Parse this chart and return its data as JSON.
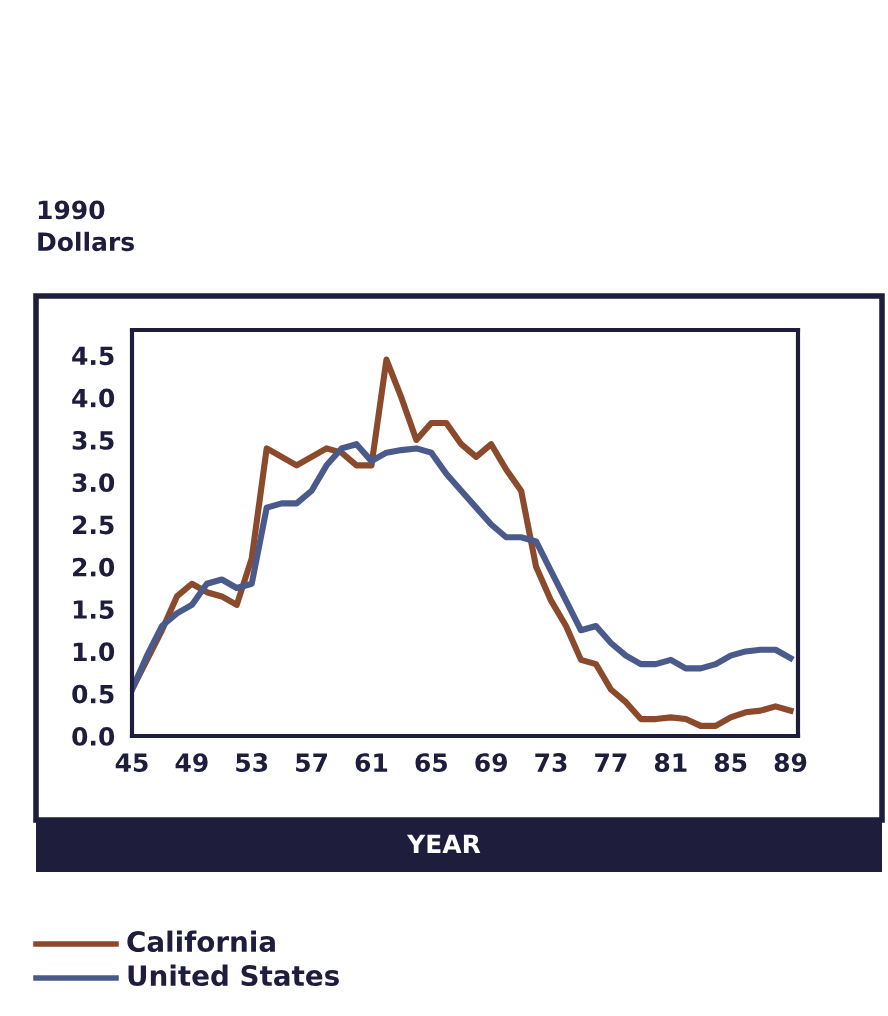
{
  "chart_data": {
    "type": "line",
    "ylabel": "1990\nDollars",
    "xlabel": "YEAR",
    "x": [
      45,
      46,
      47,
      48,
      49,
      50,
      51,
      52,
      53,
      54,
      55,
      56,
      57,
      58,
      59,
      60,
      61,
      62,
      63,
      64,
      65,
      66,
      67,
      68,
      69,
      70,
      71,
      72,
      73,
      74,
      75,
      76,
      77,
      78,
      79,
      80,
      81,
      82,
      83,
      84,
      85,
      86,
      87,
      88,
      89
    ],
    "series": [
      {
        "name": "California",
        "color": "#8b4a2b",
        "values": [
          0.55,
          0.9,
          1.25,
          1.65,
          1.8,
          1.7,
          1.65,
          1.55,
          2.1,
          3.4,
          3.3,
          3.2,
          3.3,
          3.4,
          3.35,
          3.2,
          3.2,
          4.45,
          4.0,
          3.5,
          3.7,
          3.7,
          3.45,
          3.3,
          3.45,
          3.15,
          2.9,
          2.0,
          1.6,
          1.3,
          0.9,
          0.85,
          0.55,
          0.4,
          0.2,
          0.2,
          0.22,
          0.2,
          0.12,
          0.12,
          0.22,
          0.28,
          0.3,
          0.35,
          0.3
        ]
      },
      {
        "name": "United States",
        "color": "#4a5a8a",
        "values": [
          0.55,
          0.95,
          1.3,
          1.45,
          1.55,
          1.8,
          1.85,
          1.75,
          1.8,
          2.7,
          2.75,
          2.75,
          2.9,
          3.2,
          3.4,
          3.45,
          3.25,
          3.35,
          3.38,
          3.4,
          3.35,
          3.1,
          2.9,
          2.7,
          2.5,
          2.35,
          2.35,
          2.3,
          1.95,
          1.6,
          1.25,
          1.3,
          1.1,
          0.95,
          0.85,
          0.85,
          0.9,
          0.8,
          0.8,
          0.85,
          0.95,
          1.0,
          1.02,
          1.02,
          0.92
        ]
      }
    ],
    "xlim": [
      45,
      89.5
    ],
    "ylim": [
      0,
      4.8
    ],
    "xticks": [
      45,
      49,
      53,
      57,
      61,
      65,
      69,
      73,
      77,
      81,
      85,
      89
    ],
    "yticks": [
      {
        "value": 0,
        "label": "0.0"
      },
      {
        "value": 0.5,
        "label": "0.5"
      },
      {
        "value": 1,
        "label": "1.0"
      },
      {
        "value": 1.5,
        "label": "1.5"
      },
      {
        "value": 2,
        "label": "2.0"
      },
      {
        "value": 2.5,
        "label": "2.5"
      },
      {
        "value": 3,
        "label": "3.0"
      },
      {
        "value": 3.5,
        "label": "3.5"
      },
      {
        "value": 4,
        "label": "4.0"
      },
      {
        "value": 4.5,
        "label": "4.5"
      }
    ],
    "grid": false,
    "legend": "bottom",
    "marker": "none",
    "line_style": "solid"
  }
}
